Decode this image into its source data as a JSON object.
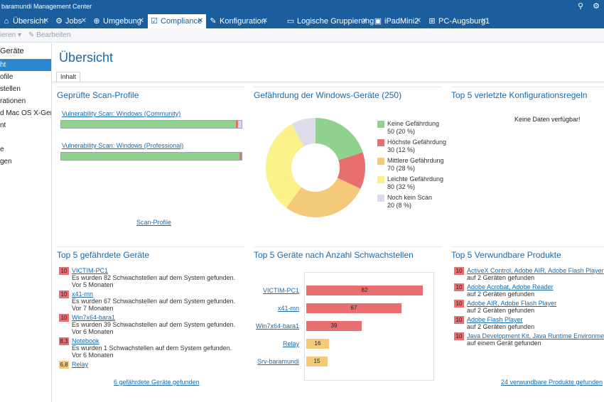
{
  "window": {
    "title": "baramundi Management Center"
  },
  "tabs": [
    {
      "label": "Übersicht",
      "icon": "home-icon",
      "glyph": "⌂"
    },
    {
      "label": "Jobs",
      "icon": "gear-icon",
      "glyph": "⚙"
    },
    {
      "label": "Umgebung",
      "icon": "globe-icon",
      "glyph": "⊕"
    },
    {
      "label": "Compliance",
      "icon": "checkbox-icon",
      "glyph": "☑"
    },
    {
      "label": "Konfiguration",
      "icon": "wrench-icon",
      "glyph": "✎"
    },
    {
      "label": "Logische Gruppierung",
      "icon": "folder-icon",
      "glyph": "▭"
    },
    {
      "label": "iPadMini2",
      "icon": "ios-device-icon",
      "glyph": "▣"
    },
    {
      "label": "PC-Augsburg1",
      "icon": "windows-icon",
      "glyph": "⊞"
    }
  ],
  "toolbar": {
    "item1": "ieren",
    "item2": "Bearbeiten"
  },
  "sidebar": {
    "header": "Geräte",
    "items": [
      "ht",
      "ofile",
      "stellen",
      "rationen",
      "d Mac OS X-Ger...",
      "nt",
      "",
      "e",
      "gen"
    ]
  },
  "main": {
    "title": "Übersicht",
    "tab": "Inhalt"
  },
  "scan": {
    "title": "Geprüfte Scan-Profile",
    "profiles": [
      {
        "name": "Vulnerability Scan: Windows (Community)"
      },
      {
        "name": "Vulnerability Scan: Windows (Professional)"
      }
    ],
    "footer": "Scan-Profile"
  },
  "threat": {
    "title": "Gefährdung der Windows-Geräte (250)",
    "legend": [
      {
        "label": "Keine Gefährdung",
        "value": "50 (20 %)",
        "color": "#8fd28f"
      },
      {
        "label": "Höchste Gefährdung",
        "value": "30 (12 %)",
        "color": "#e86f6f"
      },
      {
        "label": "Mittlere Gefährdung",
        "value": "70 (28 %)",
        "color": "#f5c97a"
      },
      {
        "label": "Leichte Gefährdung",
        "value": "80 (32 %)",
        "color": "#fbf28a"
      },
      {
        "label": "Noch kein Scan",
        "value": "20 (8 %)",
        "color": "#dcdcea"
      }
    ]
  },
  "chart_data": {
    "type": "pie",
    "categories": [
      "Keine Gefährdung",
      "Höchste Gefährdung",
      "Mittlere Gefährdung",
      "Leichte Gefährdung",
      "Noch kein Scan"
    ],
    "values": [
      50,
      30,
      70,
      80,
      20
    ]
  },
  "rules": {
    "title": "Top 5 verletzte Konfigurationsregeln",
    "nodata": "Keine Daten verfügbar!"
  },
  "devices": {
    "title": "Top 5 gefährdete Geräte",
    "items": [
      {
        "score": "10",
        "color": "#e86f6f",
        "name": "VICTIM-PC1",
        "line1": "Es wurden 82 Schwachstellen auf dem System gefunden.",
        "line2": "Vor 5 Monaten"
      },
      {
        "score": "10",
        "color": "#e86f6f",
        "name": "x41-mn",
        "line1": "Es wurden 67 Schwachstellen auf dem System gefunden.",
        "line2": "Vor 7 Monaten"
      },
      {
        "score": "10",
        "color": "#e86f6f",
        "name": "Win7x64-bara1",
        "line1": "Es wurden 39 Schwachstellen auf dem System gefunden.",
        "line2": "Vor 6 Monaten"
      },
      {
        "score": "8,3",
        "color": "#e86f6f",
        "name": "Notebook",
        "line1": "Es wurden 1 Schwachstellen auf dem System gefunden.",
        "line2": "Vor 6 Monaten"
      },
      {
        "score": "6,8",
        "color": "#f5c97a",
        "name": "Relay",
        "line1": "",
        "line2": ""
      }
    ],
    "footer": "6 gefährdete Geräte gefunden"
  },
  "vulncount": {
    "title": "Top 5 Geräte nach Anzahl Schwachstellen",
    "items": [
      {
        "name": "VICTIM-PC1",
        "value": 82,
        "label": "82",
        "color": "#e86f6f"
      },
      {
        "name": "x41-mn",
        "value": 67,
        "label": "67",
        "color": "#e86f6f"
      },
      {
        "name": "Win7x64-bara1",
        "value": 39,
        "label": "39",
        "color": "#e86f6f"
      },
      {
        "name": "Relay",
        "value": 16,
        "label": "16",
        "color": "#f5c97a"
      },
      {
        "name": "Srv-baramundi",
        "value": 15,
        "label": "15",
        "color": "#f5c97a"
      }
    ]
  },
  "products": {
    "title": "Top 5 Verwundbare Produkte",
    "items": [
      {
        "score": "10",
        "name": "ActiveX Control, Adobe AIR, Adobe Flash Player",
        "detail": "auf 2 Geräten gefunden"
      },
      {
        "score": "10",
        "name": "Adobe Acrobat, Adobe Reader",
        "detail": "auf 2 Geräten gefunden"
      },
      {
        "score": "10",
        "name": "Adobe AIR, Adobe Flash Player",
        "detail": "auf 2 Geräten gefunden"
      },
      {
        "score": "10",
        "name": "Adobe Flash Player",
        "detail": "auf 2 Geräten gefunden"
      },
      {
        "score": "10",
        "name": "Java Development Kit, Java Runtime Environment",
        "detail": "auf einem Gerät gefunden"
      }
    ],
    "footer": "24 verwundbare Produkte gefunden"
  }
}
